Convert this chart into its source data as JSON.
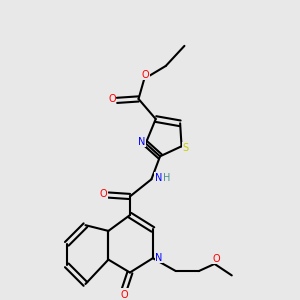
{
  "background_color": "#e8e8e8",
  "figsize": [
    3.0,
    3.0
  ],
  "dpi": 100,
  "bond_color": "#000000",
  "bond_lw": 1.5,
  "atom_colors": {
    "O": "#ff0000",
    "N": "#0000ff",
    "S": "#cccc00",
    "H": "#4a9090",
    "C": "#000000"
  }
}
